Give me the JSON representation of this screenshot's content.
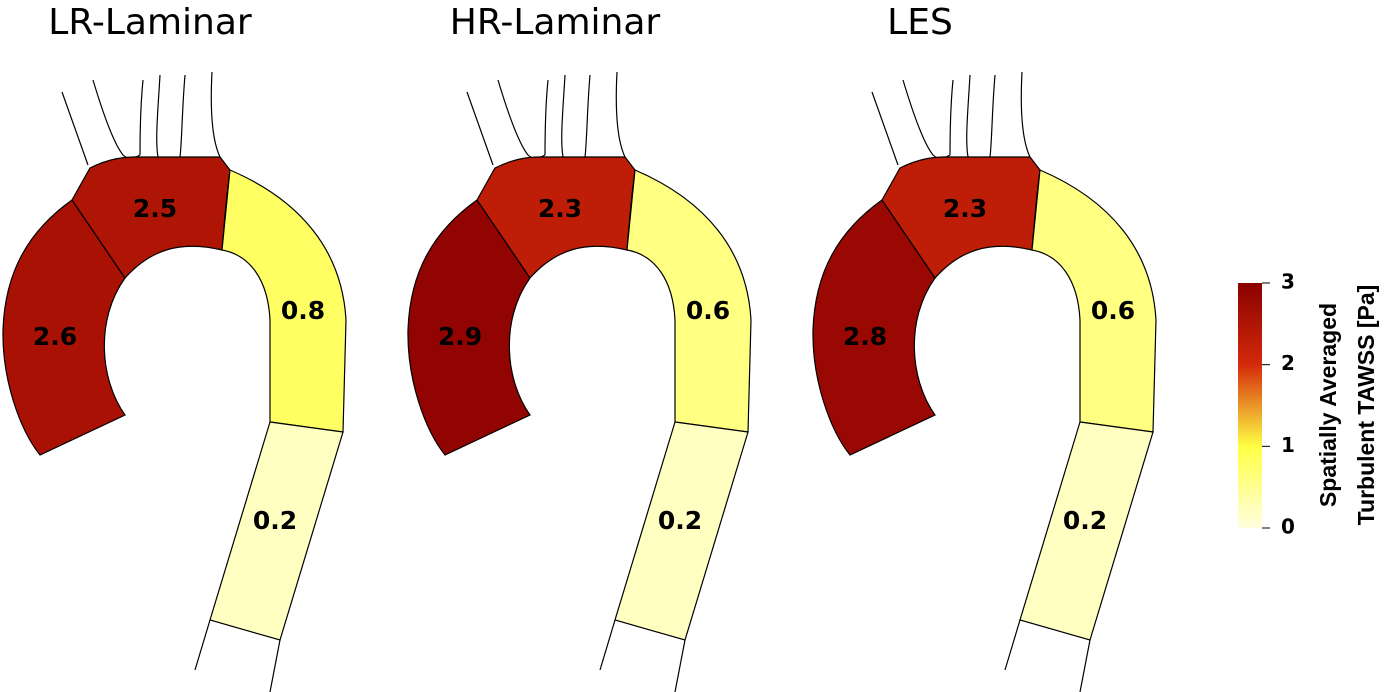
{
  "panels": [
    {
      "title": "LR-Laminar",
      "regions": [
        {
          "value": 2.6
        },
        {
          "value": 2.5
        },
        {
          "value": 0.8
        },
        {
          "value": 0.2
        }
      ]
    },
    {
      "title": "HR-Laminar",
      "regions": [
        {
          "value": 2.9
        },
        {
          "value": 2.3
        },
        {
          "value": 0.6
        },
        {
          "value": 0.2
        }
      ]
    },
    {
      "title": "LES",
      "regions": [
        {
          "value": 2.8
        },
        {
          "value": 2.3
        },
        {
          "value": 0.6
        },
        {
          "value": 0.2
        }
      ]
    }
  ],
  "colorbar": {
    "label": [
      "Spatially Averaged",
      "Turbulent TAWSS [Pa]"
    ],
    "lim": [
      0,
      3
    ],
    "ticks": [
      0,
      1,
      2,
      3
    ],
    "colors": [
      "#ffffe0",
      "#ffff44",
      "#d42a0a",
      "#8a0000"
    ]
  }
}
